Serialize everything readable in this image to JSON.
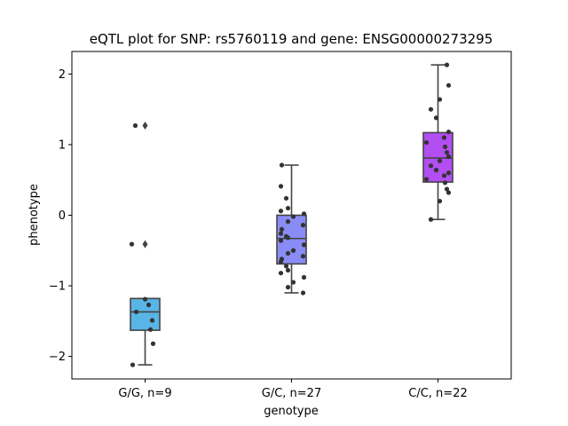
{
  "chart_data": {
    "type": "box",
    "title": "eQTL plot for SNP: rs5760119 and gene: ENSG00000273295",
    "xlabel": "genotype",
    "ylabel": "phenotype",
    "ylim": [
      -2.32,
      2.32
    ],
    "yticks": [
      -2,
      -1,
      0,
      1,
      2
    ],
    "yticklabels": [
      "−2",
      "−1",
      "0",
      "1",
      "2"
    ],
    "grid": false,
    "categories": [
      "G/G, n=9",
      "G/C, n=27",
      "C/C, n=22"
    ],
    "colors": [
      "#58b5e6",
      "#8a8cf5",
      "#b34ef2"
    ],
    "boxes": [
      {
        "q1": -1.63,
        "median": -1.37,
        "q3": -1.18,
        "whisker_low": -2.12,
        "whisker_high": -1.18,
        "outliers": [
          1.27,
          -0.41
        ]
      },
      {
        "q1": -0.69,
        "median": -0.33,
        "q3": 0.0,
        "whisker_low": -1.1,
        "whisker_high": 0.71,
        "outliers": []
      },
      {
        "q1": 0.47,
        "median": 0.81,
        "q3": 1.17,
        "whisker_low": -0.06,
        "whisker_high": 2.13,
        "outliers": []
      }
    ],
    "points": [
      [
        1.27,
        -0.41,
        -1.19,
        -1.27,
        -1.37,
        -1.49,
        -1.62,
        -1.82,
        -2.12
      ],
      [
        0.71,
        0.41,
        0.24,
        0.1,
        0.06,
        0.02,
        -0.02,
        -0.09,
        -0.14,
        -0.2,
        -0.26,
        -0.3,
        -0.32,
        -0.36,
        -0.42,
        -0.5,
        -0.54,
        -0.58,
        -0.62,
        -0.66,
        -0.72,
        -0.78,
        -0.82,
        -0.88,
        -0.95,
        -1.02,
        -1.1
      ],
      [
        2.13,
        1.84,
        1.64,
        1.5,
        1.38,
        1.18,
        1.1,
        1.03,
        0.97,
        0.89,
        0.83,
        0.77,
        0.7,
        0.64,
        0.6,
        0.56,
        0.51,
        0.46,
        0.37,
        0.32,
        0.2,
        -0.06
      ]
    ]
  }
}
